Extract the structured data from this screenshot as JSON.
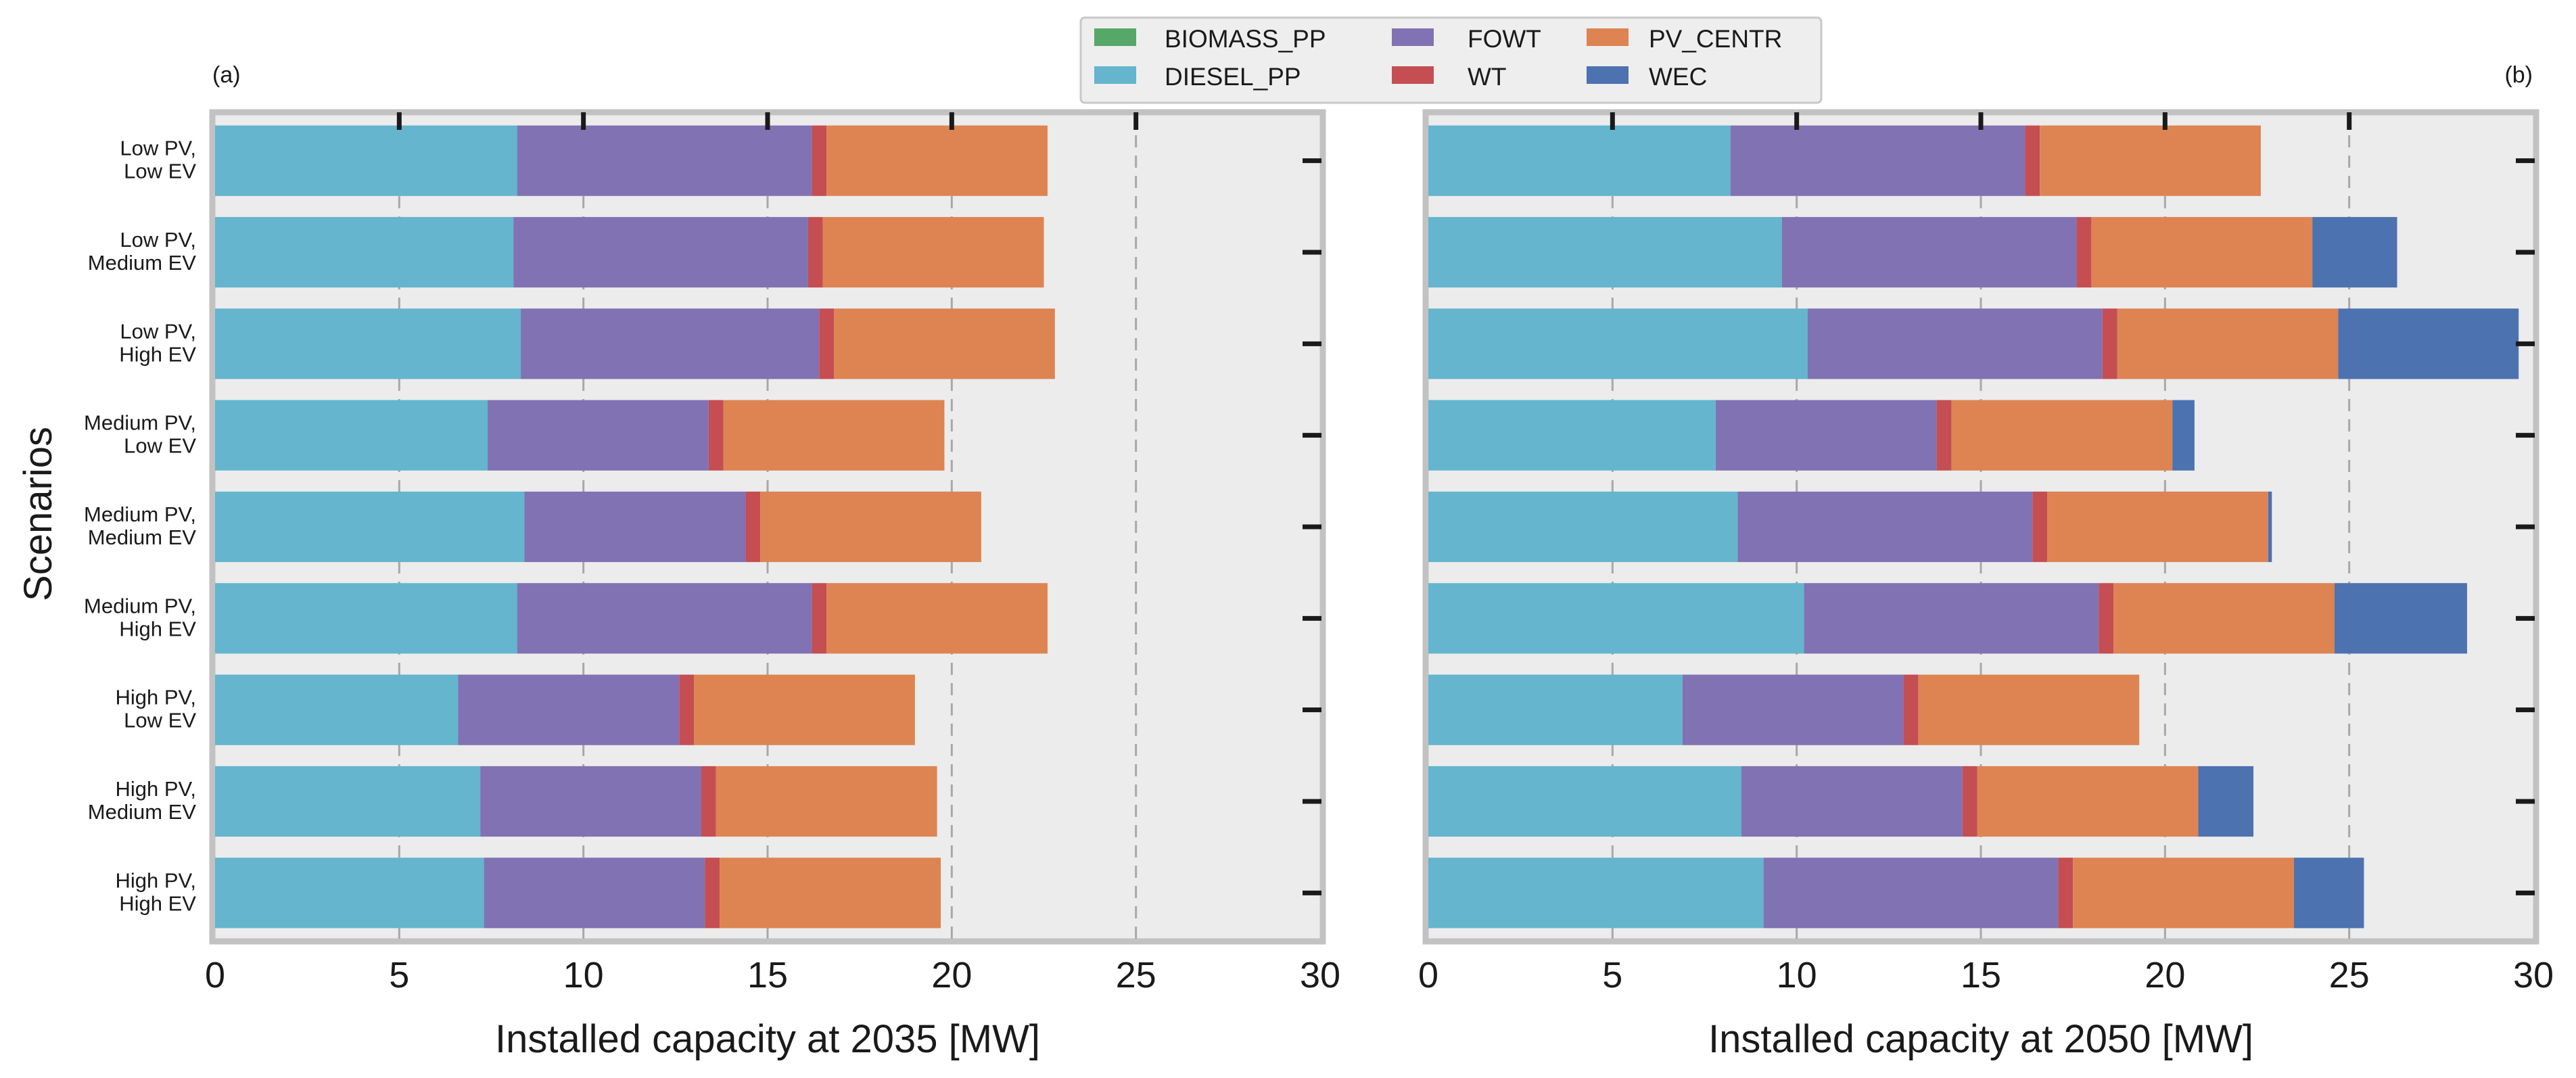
{
  "chart_data": {
    "type": "bar",
    "orientation": "horizontal",
    "stacked": true,
    "ylabel": "Scenarios",
    "legend": {
      "placement": "top-center",
      "entries": [
        "BIOMASS_PP",
        "DIESEL_PP",
        "FOWT",
        "WT",
        "PV_CENTR",
        "WEC"
      ]
    },
    "colors": {
      "BIOMASS_PP": "#55a868",
      "DIESEL_PP": "#64b5cd",
      "FOWT": "#8172b3",
      "WT": "#c44e52",
      "PV_CENTR": "#dd8452",
      "WEC": "#4c72b0"
    },
    "categories": [
      [
        "Low PV,",
        "Low EV"
      ],
      [
        "Low PV,",
        "Medium EV"
      ],
      [
        "Low PV,",
        "High EV"
      ],
      [
        "Medium PV,",
        "Low EV"
      ],
      [
        "Medium PV,",
        "Medium EV"
      ],
      [
        "Medium PV,",
        "High EV"
      ],
      [
        "High PV,",
        "Low EV"
      ],
      [
        "High PV,",
        "Medium EV"
      ],
      [
        "High PV,",
        "High EV"
      ]
    ],
    "panels": [
      {
        "label": "(a)",
        "xlabel": "Installed capacity at 2035 [MW]",
        "xlim": [
          0,
          30
        ],
        "xticks": [
          "0",
          "5",
          "10",
          "15",
          "20",
          "25",
          "30"
        ],
        "series": [
          {
            "name": "BIOMASS_PP",
            "values": [
              0,
              0,
              0,
              0,
              0,
              0,
              0,
              0,
              0
            ]
          },
          {
            "name": "DIESEL_PP",
            "values": [
              8.2,
              8.1,
              8.3,
              7.4,
              8.4,
              8.2,
              6.6,
              7.2,
              7.3
            ]
          },
          {
            "name": "FOWT",
            "values": [
              8.0,
              8.0,
              8.1,
              6.0,
              6.0,
              8.0,
              6.0,
              6.0,
              6.0
            ]
          },
          {
            "name": "WT",
            "values": [
              0.4,
              0.4,
              0.4,
              0.4,
              0.4,
              0.4,
              0.4,
              0.4,
              0.4
            ]
          },
          {
            "name": "PV_CENTR",
            "values": [
              6.0,
              6.0,
              6.0,
              6.0,
              6.0,
              6.0,
              6.0,
              6.0,
              6.0
            ]
          },
          {
            "name": "WEC",
            "values": [
              0,
              0,
              0,
              0,
              0,
              0,
              0,
              0,
              0
            ]
          }
        ]
      },
      {
        "label": "(b)",
        "xlabel": "Installed capacity at 2050 [MW]",
        "xlim": [
          0,
          30
        ],
        "xticks": [
          "0",
          "5",
          "10",
          "15",
          "20",
          "25",
          "30"
        ],
        "series": [
          {
            "name": "BIOMASS_PP",
            "values": [
              0,
              0,
              0,
              0,
              0,
              0,
              0,
              0,
              0
            ]
          },
          {
            "name": "DIESEL_PP",
            "values": [
              8.2,
              9.6,
              10.3,
              7.8,
              8.4,
              10.2,
              6.9,
              8.5,
              9.1
            ]
          },
          {
            "name": "FOWT",
            "values": [
              8.0,
              8.0,
              8.0,
              6.0,
              8.0,
              8.0,
              6.0,
              6.0,
              8.0
            ]
          },
          {
            "name": "WT",
            "values": [
              0.4,
              0.4,
              0.4,
              0.4,
              0.4,
              0.4,
              0.4,
              0.4,
              0.4
            ]
          },
          {
            "name": "PV_CENTR",
            "values": [
              6.0,
              6.0,
              6.0,
              6.0,
              6.0,
              6.0,
              6.0,
              6.0,
              6.0
            ]
          },
          {
            "name": "WEC",
            "values": [
              0,
              2.3,
              4.9,
              0.6,
              0.1,
              3.6,
              0,
              1.5,
              1.9
            ]
          }
        ]
      }
    ]
  }
}
